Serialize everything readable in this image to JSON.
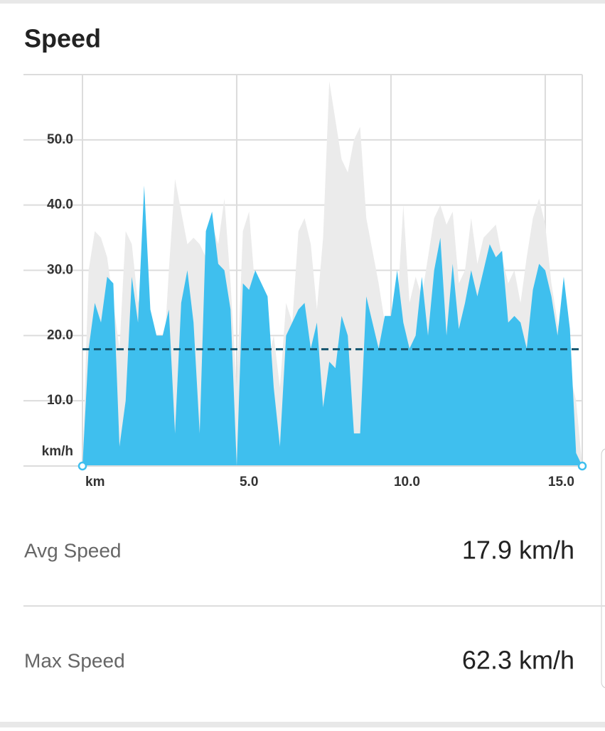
{
  "header": {
    "title": "Speed"
  },
  "chart_data": {
    "type": "area",
    "xlabel": "km",
    "ylabel": "km/h",
    "x": [
      0,
      0.2,
      0.4,
      0.6,
      0.8,
      1.0,
      1.2,
      1.4,
      1.6,
      1.8,
      2.0,
      2.2,
      2.4,
      2.6,
      2.8,
      3.0,
      3.2,
      3.4,
      3.6,
      3.8,
      4.0,
      4.2,
      4.4,
      4.6,
      4.8,
      5.0,
      5.2,
      5.4,
      5.6,
      5.8,
      6.0,
      6.2,
      6.4,
      6.6,
      6.8,
      7.0,
      7.2,
      7.4,
      7.6,
      7.8,
      8.0,
      8.2,
      8.4,
      8.6,
      8.8,
      9.0,
      9.2,
      9.4,
      9.6,
      9.8,
      10.0,
      10.2,
      10.4,
      10.6,
      10.8,
      11.0,
      11.2,
      11.4,
      11.6,
      11.8,
      12.0,
      12.2,
      12.4,
      12.6,
      12.8,
      13.0,
      13.2,
      13.4,
      13.6,
      13.8,
      14.0,
      14.2,
      14.4,
      14.6,
      14.8,
      15.0,
      15.2,
      15.4,
      15.6,
      15.8,
      16.0,
      16.2
    ],
    "series": [
      {
        "color": "#ebebeb",
        "values": [
          0,
          30,
          36,
          35,
          32,
          25,
          18,
          36,
          34,
          25,
          28,
          22,
          12,
          14,
          30,
          44,
          39,
          34,
          35,
          34,
          32,
          37,
          34,
          41,
          28,
          12,
          36,
          39,
          27,
          22,
          16,
          20,
          12,
          25,
          22,
          36,
          38,
          34,
          24,
          35,
          59,
          53,
          47,
          45,
          50,
          52,
          38,
          33,
          28,
          22,
          20,
          24,
          40,
          25,
          29,
          26,
          32,
          38,
          40,
          37,
          39,
          28,
          30,
          38,
          31,
          35,
          36,
          37,
          32,
          28,
          30,
          25,
          32,
          38,
          41,
          37,
          28,
          22,
          18,
          14,
          10,
          0
        ]
      },
      {
        "color": "#3fbfee",
        "values": [
          0,
          18,
          25,
          22,
          29,
          28,
          3,
          10,
          29,
          22,
          43,
          24,
          20,
          20,
          24,
          5,
          25,
          30,
          22,
          5,
          36,
          39,
          31,
          30,
          24,
          0,
          28,
          27,
          30,
          28,
          26,
          12,
          3,
          20,
          22,
          24,
          25,
          18,
          22,
          9,
          16,
          15,
          23,
          20,
          5,
          5,
          26,
          22,
          18,
          23,
          23,
          30,
          22,
          18,
          20,
          29,
          20,
          30,
          35,
          20,
          31,
          21,
          25,
          30,
          26,
          30,
          34,
          32,
          33,
          22,
          23,
          22,
          18,
          27,
          31,
          30,
          26,
          20,
          29,
          21,
          2,
          0
        ]
      }
    ],
    "mean": 17.9,
    "mean_color": "#17566e",
    "xlim": [
      0,
      16.2
    ],
    "ylim": [
      0,
      60
    ],
    "xticks": [
      {
        "value": 5,
        "label": "5.0"
      },
      {
        "value": 10,
        "label": "10.0"
      },
      {
        "value": 15,
        "label": "15.0"
      }
    ],
    "yticks": [
      {
        "value": 10,
        "label": "10.0"
      },
      {
        "value": 20,
        "label": "20.0"
      },
      {
        "value": 30,
        "label": "30.0"
      },
      {
        "value": 40,
        "label": "40.0"
      },
      {
        "value": 50,
        "label": "50.0"
      }
    ],
    "grid": true
  },
  "stats": [
    {
      "label": "Avg Speed",
      "value": "17.9 km/h"
    },
    {
      "label": "Max Speed",
      "value": "62.3 km/h"
    }
  ]
}
